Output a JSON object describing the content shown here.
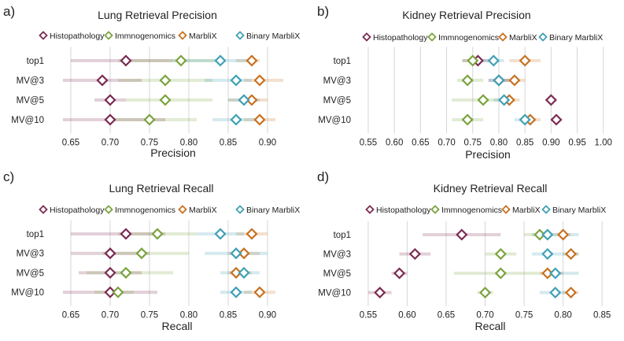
{
  "colors": {
    "Histopathology": "#7b2a52",
    "Immnogenomics": "#7aa33e",
    "MarbliX": "#c8701f",
    "Binary MarbliX": "#3fa0b5"
  },
  "chart_data": [
    {
      "panel_label": "a)",
      "type": "scatter",
      "title": "Lung Retrieval Precision",
      "xlabel": "Precision",
      "ylabel": "",
      "xlim": [
        0.635,
        0.925
      ],
      "xticks": [
        0.65,
        0.7,
        0.75,
        0.8,
        0.85,
        0.9
      ],
      "tick_labels": [
        "0.65",
        "0.70",
        "0.75",
        "0.80",
        "0.85",
        "0.90"
      ],
      "grid": true,
      "legend": [
        "Histopathology",
        "Immnogenomics",
        "MarbliX",
        "Binary MarbliX"
      ],
      "categories": [
        "top1",
        "MV@3",
        "MV@5",
        "MV@10"
      ],
      "series": [
        {
          "name": "Histopathology",
          "values": [
            0.72,
            0.69,
            0.7,
            0.7
          ],
          "ci_low": [
            0.65,
            0.64,
            0.68,
            0.64
          ],
          "ci_high": [
            0.78,
            0.74,
            0.72,
            0.77
          ]
        },
        {
          "name": "Immnogenomics",
          "values": [
            0.79,
            0.77,
            0.77,
            0.75
          ],
          "ci_low": [
            0.71,
            0.71,
            0.72,
            0.7
          ],
          "ci_high": [
            0.84,
            0.83,
            0.83,
            0.81
          ]
        },
        {
          "name": "MarbliX",
          "values": [
            0.88,
            0.89,
            0.88,
            0.89
          ],
          "ci_low": [
            0.86,
            0.87,
            0.85,
            0.87
          ],
          "ci_high": [
            0.89,
            0.92,
            0.9,
            0.91
          ]
        },
        {
          "name": "Binary MarbliX",
          "values": [
            0.84,
            0.86,
            0.87,
            0.86
          ],
          "ci_low": [
            0.78,
            0.82,
            0.85,
            0.83
          ],
          "ci_high": [
            0.88,
            0.88,
            0.89,
            0.89
          ]
        }
      ]
    },
    {
      "panel_label": "b)",
      "type": "scatter",
      "title": "Kidney Retrieval Precision",
      "xlabel": "Precision",
      "ylabel": "",
      "xlim": [
        0.535,
        1.02
      ],
      "xticks": [
        0.55,
        0.6,
        0.65,
        0.7,
        0.75,
        0.8,
        0.85,
        0.9,
        0.95,
        1.0
      ],
      "tick_labels": [
        "0.55",
        "0.60",
        "0.65",
        "0.70",
        "0.75",
        "0.80",
        "0.85",
        "0.90",
        "0.95",
        "1.00"
      ],
      "grid": true,
      "legend": [
        "Histopathology",
        "Immnogenomics",
        "MarbliX",
        "Binary MarbliX"
      ],
      "categories": [
        "top1",
        "MV@3",
        "MV@5",
        "MV@10"
      ],
      "series": [
        {
          "name": "Histopathology",
          "values": [
            0.76,
            0.8,
            0.9,
            0.91
          ],
          "ci_low": [
            0.73,
            0.78,
            0.89,
            0.9
          ],
          "ci_high": [
            0.79,
            0.82,
            0.91,
            0.92
          ]
        },
        {
          "name": "Immnogenomics",
          "values": [
            0.75,
            0.74,
            0.77,
            0.74
          ],
          "ci_low": [
            0.73,
            0.72,
            0.71,
            0.71
          ],
          "ci_high": [
            0.77,
            0.77,
            0.82,
            0.77
          ]
        },
        {
          "name": "MarbliX",
          "values": [
            0.85,
            0.83,
            0.82,
            0.86
          ],
          "ci_low": [
            0.82,
            0.81,
            0.8,
            0.84
          ],
          "ci_high": [
            0.88,
            0.85,
            0.84,
            0.88
          ]
        },
        {
          "name": "Binary MarbliX",
          "values": [
            0.79,
            0.8,
            0.81,
            0.85
          ],
          "ci_low": [
            0.77,
            0.78,
            0.79,
            0.83
          ],
          "ci_high": [
            0.81,
            0.82,
            0.83,
            0.87
          ]
        }
      ]
    },
    {
      "panel_label": "c)",
      "type": "scatter",
      "title": "Lung Retrieval Recall",
      "xlabel": "Recall",
      "ylabel": "",
      "xlim": [
        0.635,
        0.925
      ],
      "xticks": [
        0.65,
        0.7,
        0.75,
        0.8,
        0.85,
        0.9
      ],
      "tick_labels": [
        "0.65",
        "0.70",
        "0.75",
        "0.80",
        "0.85",
        "0.90"
      ],
      "grid": true,
      "legend": [
        "Histopathology",
        "Immnogenomics",
        "MarbliX",
        "Binary MarbliX"
      ],
      "categories": [
        "top1",
        "MV@3",
        "MV@5",
        "MV@10"
      ],
      "series": [
        {
          "name": "Histopathology",
          "values": [
            0.72,
            0.7,
            0.7,
            0.7
          ],
          "ci_low": [
            0.65,
            0.65,
            0.66,
            0.64
          ],
          "ci_high": [
            0.77,
            0.75,
            0.74,
            0.76
          ]
        },
        {
          "name": "Immnogenomics",
          "values": [
            0.76,
            0.74,
            0.72,
            0.71
          ],
          "ci_low": [
            0.71,
            0.69,
            0.67,
            0.68
          ],
          "ci_high": [
            0.81,
            0.8,
            0.78,
            0.73
          ]
        },
        {
          "name": "MarbliX",
          "values": [
            0.88,
            0.87,
            0.86,
            0.89
          ],
          "ci_low": [
            0.86,
            0.85,
            0.85,
            0.87
          ],
          "ci_high": [
            0.9,
            0.89,
            0.88,
            0.91
          ]
        },
        {
          "name": "Binary MarbliX",
          "values": [
            0.84,
            0.86,
            0.87,
            0.86
          ],
          "ci_low": [
            0.81,
            0.82,
            0.84,
            0.84
          ],
          "ci_high": [
            0.87,
            0.9,
            0.89,
            0.88
          ]
        }
      ]
    },
    {
      "panel_label": "d)",
      "type": "scatter",
      "title": "Kidney Retrieval Recall",
      "xlabel": "Recall",
      "ylabel": "",
      "xlim": [
        0.54,
        0.865
      ],
      "xticks": [
        0.55,
        0.6,
        0.65,
        0.7,
        0.75,
        0.8,
        0.85
      ],
      "tick_labels": [
        "0.55",
        "0.60",
        "0.65",
        "0.70",
        "0.75",
        "0.80",
        "0.85"
      ],
      "grid": true,
      "legend": [
        "Histopathology",
        "Immnogenomics",
        "MarbliX",
        "Binary MarbliX"
      ],
      "categories": [
        "top1",
        "MV@3",
        "MV@5",
        "MV@10"
      ],
      "series": [
        {
          "name": "Histopathology",
          "values": [
            0.67,
            0.61,
            0.59,
            0.565
          ],
          "ci_low": [
            0.62,
            0.59,
            0.58,
            0.55
          ],
          "ci_high": [
            0.72,
            0.63,
            0.6,
            0.58
          ]
        },
        {
          "name": "Immnogenomics",
          "values": [
            0.77,
            0.72,
            0.72,
            0.7
          ],
          "ci_low": [
            0.75,
            0.7,
            0.66,
            0.69
          ],
          "ci_high": [
            0.79,
            0.74,
            0.78,
            0.71
          ]
        },
        {
          "name": "MarbliX",
          "values": [
            0.8,
            0.81,
            0.78,
            0.81
          ],
          "ci_low": [
            0.79,
            0.8,
            0.77,
            0.8
          ],
          "ci_high": [
            0.81,
            0.82,
            0.8,
            0.82
          ]
        },
        {
          "name": "Binary MarbliX",
          "values": [
            0.78,
            0.78,
            0.79,
            0.79
          ],
          "ci_low": [
            0.76,
            0.76,
            0.78,
            0.77
          ],
          "ci_high": [
            0.82,
            0.82,
            0.82,
            0.81
          ]
        }
      ]
    }
  ]
}
